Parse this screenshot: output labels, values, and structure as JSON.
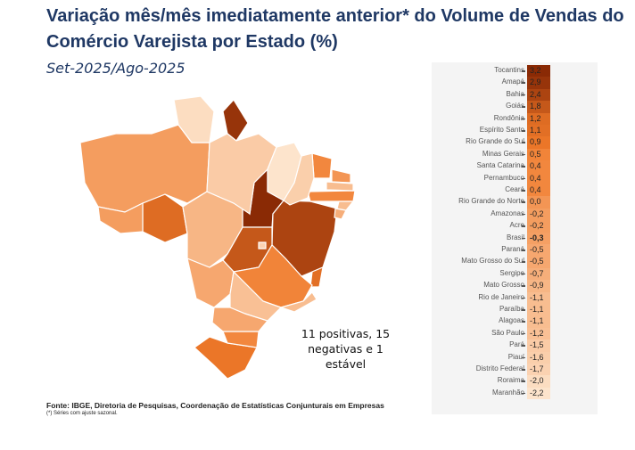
{
  "title": "Variação mês/mês imediatamente anterior* do Volume de Vendas do Comércio Varejista por Estado (%)",
  "subtitle": "Set-2025/Ago-2025",
  "annotation_line1": "11 positivas, 15",
  "annotation_line2": "negativas e 1 estável",
  "source": "Fonte: IBGE, Diretoria de Pesquisas, Coordenação de Estatísticas Conjunturais em Empresas",
  "footnote": "(*) Séries com ajuste sazonal.",
  "colors": {
    "high": "#8a2a05",
    "mid": "#f07a2a",
    "low": "#fde4cc",
    "title": "#1f3864"
  },
  "chart_data": {
    "type": "heatmap",
    "categories": [
      "Tocantins",
      "Amapá",
      "Bahia",
      "Goiás",
      "Rondônia",
      "Espírito Santo",
      "Rio Grande do Sul",
      "Minas Gerais",
      "Santa Catarina",
      "Pernambuco",
      "Ceará",
      "Rio Grande do Norte",
      "Amazonas",
      "Acre",
      "Brasil",
      "Paraná",
      "Mato Grosso do Sul",
      "Sergipe",
      "Mato Grosso",
      "Rio de Janeiro",
      "Paraíba",
      "Alagoas",
      "São Paulo",
      "Pará",
      "Piauí",
      "Distrito Federal",
      "Roraima",
      "Maranhão"
    ],
    "labels": [
      "3,2",
      "2,9",
      "2,4",
      "1,8",
      "1,2",
      "1,1",
      "0,9",
      "0,5",
      "0,4",
      "0,4",
      "0,4",
      "0,0",
      "-0,2",
      "-0,2",
      "-0,3",
      "-0,5",
      "-0,5",
      "-0,7",
      "-0,9",
      "-1,1",
      "-1,1",
      "-1,1",
      "-1,2",
      "-1,5",
      "-1,6",
      "-1,7",
      "-2,0",
      "-2,2"
    ],
    "values": [
      3.2,
      2.9,
      2.4,
      1.8,
      1.2,
      1.1,
      0.9,
      0.5,
      0.4,
      0.4,
      0.4,
      0.0,
      -0.2,
      -0.2,
      -0.3,
      -0.5,
      -0.5,
      -0.7,
      -0.9,
      -1.1,
      -1.1,
      -1.1,
      -1.2,
      -1.5,
      -1.6,
      -1.7,
      -2.0,
      -2.2
    ],
    "range": [
      -2.2,
      3.2
    ]
  }
}
